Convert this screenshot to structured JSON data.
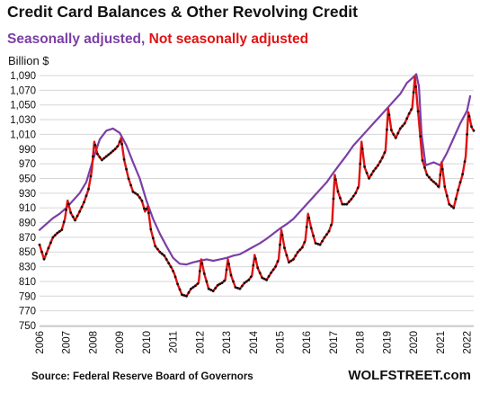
{
  "header": {
    "title": "Credit Card Balances & Other Revolving Credit",
    "subtitle_sa": "Seasonally adjusted",
    "subtitle_sep": ",",
    "subtitle_nsa": " Not seasonally adjusted",
    "unit": "Billion $"
  },
  "footer": {
    "source": "Source: Federal Reserve Board of Governors",
    "brand": "WOLFSTREET.com"
  },
  "colors": {
    "seasonally_adjusted": "#7b3fa6",
    "not_seasonally_adjusted": "#e11212",
    "markers": "#111111",
    "grid": "#d6d6d6"
  },
  "chart_data": {
    "type": "line",
    "ylim": [
      750,
      1090
    ],
    "xlim": [
      2006,
      2022.25
    ],
    "yticks": [
      "750",
      "770",
      "790",
      "810",
      "830",
      "850",
      "870",
      "890",
      "910",
      "930",
      "950",
      "970",
      "990",
      "1,010",
      "1,030",
      "1,050",
      "1,070",
      "1,090"
    ],
    "ytick_values": [
      750,
      770,
      790,
      810,
      830,
      850,
      870,
      890,
      910,
      930,
      950,
      970,
      990,
      1010,
      1030,
      1050,
      1070,
      1090
    ],
    "xticks": [
      "2006",
      "2007",
      "2008",
      "2009",
      "2010",
      "2011",
      "2012",
      "2013",
      "2014",
      "2015",
      "2016",
      "2017",
      "2018",
      "2019",
      "2020",
      "2021",
      "2022"
    ],
    "xtick_values": [
      2006,
      2007,
      2008,
      2009,
      2010,
      2011,
      2012,
      2013,
      2014,
      2015,
      2016,
      2017,
      2018,
      2019,
      2020,
      2021,
      2022
    ],
    "grid": "horizontal",
    "series": [
      {
        "name": "Seasonally adjusted",
        "points": [
          [
            2006.0,
            880
          ],
          [
            2006.25,
            888
          ],
          [
            2006.5,
            896
          ],
          [
            2006.75,
            902
          ],
          [
            2007.0,
            910
          ],
          [
            2007.25,
            920
          ],
          [
            2007.5,
            930
          ],
          [
            2007.75,
            945
          ],
          [
            2008.0,
            975
          ],
          [
            2008.25,
            1003
          ],
          [
            2008.5,
            1015
          ],
          [
            2008.75,
            1018
          ],
          [
            2009.0,
            1012
          ],
          [
            2009.25,
            995
          ],
          [
            2009.5,
            972
          ],
          [
            2009.75,
            950
          ],
          [
            2010.0,
            920
          ],
          [
            2010.25,
            895
          ],
          [
            2010.5,
            875
          ],
          [
            2010.75,
            858
          ],
          [
            2011.0,
            842
          ],
          [
            2011.25,
            834
          ],
          [
            2011.5,
            833
          ],
          [
            2011.75,
            836
          ],
          [
            2012.0,
            838
          ],
          [
            2012.25,
            840
          ],
          [
            2012.5,
            838
          ],
          [
            2012.75,
            840
          ],
          [
            2013.0,
            842
          ],
          [
            2013.25,
            845
          ],
          [
            2013.5,
            847
          ],
          [
            2013.75,
            852
          ],
          [
            2014.0,
            857
          ],
          [
            2014.25,
            862
          ],
          [
            2014.5,
            868
          ],
          [
            2014.75,
            875
          ],
          [
            2015.0,
            882
          ],
          [
            2015.25,
            888
          ],
          [
            2015.5,
            895
          ],
          [
            2015.75,
            905
          ],
          [
            2016.0,
            915
          ],
          [
            2016.25,
            925
          ],
          [
            2016.5,
            935
          ],
          [
            2016.75,
            945
          ],
          [
            2017.0,
            958
          ],
          [
            2017.25,
            970
          ],
          [
            2017.5,
            982
          ],
          [
            2017.75,
            995
          ],
          [
            2018.0,
            1005
          ],
          [
            2018.25,
            1015
          ],
          [
            2018.5,
            1025
          ],
          [
            2018.75,
            1035
          ],
          [
            2019.0,
            1045
          ],
          [
            2019.25,
            1055
          ],
          [
            2019.5,
            1065
          ],
          [
            2019.75,
            1080
          ],
          [
            2020.0,
            1088
          ],
          [
            2020.1,
            1092
          ],
          [
            2020.2,
            1075
          ],
          [
            2020.3,
            1010
          ],
          [
            2020.45,
            968
          ],
          [
            2020.75,
            972
          ],
          [
            2021.0,
            968
          ],
          [
            2021.25,
            985
          ],
          [
            2021.5,
            1005
          ],
          [
            2021.75,
            1025
          ],
          [
            2022.0,
            1042
          ],
          [
            2022.12,
            1062
          ]
        ]
      },
      {
        "name": "Not seasonally adjusted",
        "points": [
          [
            2006.0,
            860
          ],
          [
            2006.17,
            840
          ],
          [
            2006.33,
            855
          ],
          [
            2006.5,
            870
          ],
          [
            2006.67,
            876
          ],
          [
            2006.83,
            880
          ],
          [
            2006.95,
            895
          ],
          [
            2007.05,
            920
          ],
          [
            2007.17,
            903
          ],
          [
            2007.33,
            893
          ],
          [
            2007.5,
            905
          ],
          [
            2007.67,
            918
          ],
          [
            2007.83,
            935
          ],
          [
            2007.95,
            960
          ],
          [
            2008.05,
            1000
          ],
          [
            2008.17,
            983
          ],
          [
            2008.33,
            975
          ],
          [
            2008.5,
            980
          ],
          [
            2008.67,
            985
          ],
          [
            2008.83,
            990
          ],
          [
            2008.95,
            995
          ],
          [
            2009.05,
            1005
          ],
          [
            2009.17,
            975
          ],
          [
            2009.33,
            950
          ],
          [
            2009.5,
            932
          ],
          [
            2009.67,
            928
          ],
          [
            2009.83,
            920
          ],
          [
            2009.95,
            905
          ],
          [
            2010.05,
            912
          ],
          [
            2010.17,
            880
          ],
          [
            2010.33,
            858
          ],
          [
            2010.5,
            850
          ],
          [
            2010.67,
            845
          ],
          [
            2010.83,
            835
          ],
          [
            2010.95,
            828
          ],
          [
            2011.05,
            820
          ],
          [
            2011.17,
            806
          ],
          [
            2011.33,
            792
          ],
          [
            2011.5,
            790
          ],
          [
            2011.67,
            800
          ],
          [
            2011.83,
            804
          ],
          [
            2011.95,
            808
          ],
          [
            2012.05,
            840
          ],
          [
            2012.17,
            820
          ],
          [
            2012.33,
            800
          ],
          [
            2012.5,
            797
          ],
          [
            2012.67,
            805
          ],
          [
            2012.83,
            808
          ],
          [
            2012.95,
            812
          ],
          [
            2013.05,
            840
          ],
          [
            2013.17,
            818
          ],
          [
            2013.33,
            802
          ],
          [
            2013.5,
            800
          ],
          [
            2013.67,
            808
          ],
          [
            2013.83,
            812
          ],
          [
            2013.95,
            818
          ],
          [
            2014.05,
            846
          ],
          [
            2014.17,
            828
          ],
          [
            2014.33,
            815
          ],
          [
            2014.5,
            812
          ],
          [
            2014.67,
            822
          ],
          [
            2014.83,
            830
          ],
          [
            2014.95,
            840
          ],
          [
            2015.05,
            880
          ],
          [
            2015.17,
            855
          ],
          [
            2015.33,
            836
          ],
          [
            2015.5,
            840
          ],
          [
            2015.67,
            850
          ],
          [
            2015.83,
            856
          ],
          [
            2015.95,
            866
          ],
          [
            2016.05,
            902
          ],
          [
            2016.17,
            882
          ],
          [
            2016.33,
            862
          ],
          [
            2016.5,
            860
          ],
          [
            2016.67,
            870
          ],
          [
            2016.83,
            878
          ],
          [
            2016.95,
            890
          ],
          [
            2017.05,
            955
          ],
          [
            2017.17,
            932
          ],
          [
            2017.33,
            915
          ],
          [
            2017.5,
            915
          ],
          [
            2017.67,
            922
          ],
          [
            2017.83,
            930
          ],
          [
            2017.95,
            940
          ],
          [
            2018.05,
            1000
          ],
          [
            2018.17,
            965
          ],
          [
            2018.33,
            950
          ],
          [
            2018.5,
            960
          ],
          [
            2018.67,
            968
          ],
          [
            2018.83,
            978
          ],
          [
            2018.95,
            988
          ],
          [
            2019.05,
            1045
          ],
          [
            2019.17,
            1015
          ],
          [
            2019.33,
            1005
          ],
          [
            2019.5,
            1018
          ],
          [
            2019.67,
            1025
          ],
          [
            2019.83,
            1038
          ],
          [
            2019.95,
            1046
          ],
          [
            2020.05,
            1088
          ],
          [
            2020.17,
            1040
          ],
          [
            2020.33,
            975
          ],
          [
            2020.5,
            955
          ],
          [
            2020.67,
            948
          ],
          [
            2020.83,
            943
          ],
          [
            2020.95,
            938
          ],
          [
            2021.05,
            972
          ],
          [
            2021.17,
            938
          ],
          [
            2021.33,
            915
          ],
          [
            2021.5,
            910
          ],
          [
            2021.67,
            935
          ],
          [
            2021.83,
            955
          ],
          [
            2021.95,
            980
          ],
          [
            2022.05,
            1040
          ],
          [
            2022.17,
            1020
          ],
          [
            2022.25,
            1015
          ]
        ]
      }
    ]
  }
}
